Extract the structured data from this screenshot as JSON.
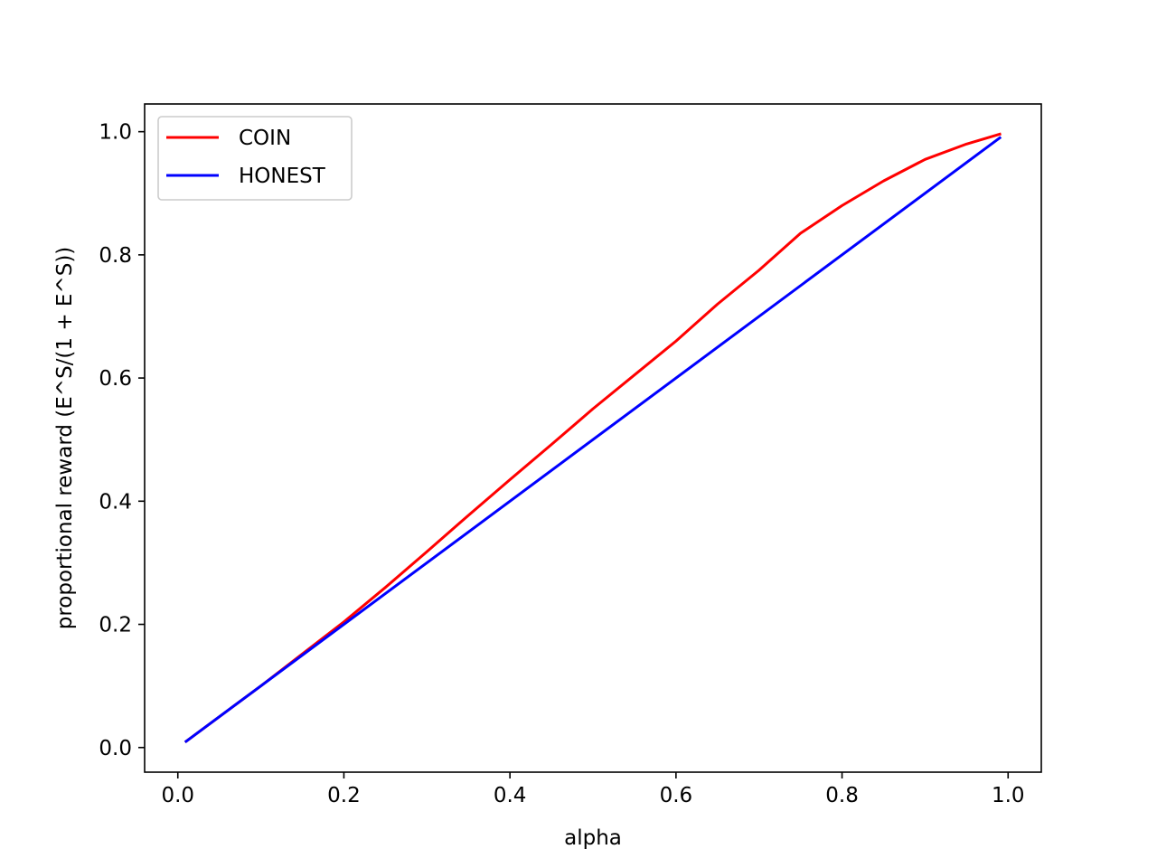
{
  "chart_data": {
    "type": "line",
    "title": "",
    "xlabel": "alpha",
    "ylabel": "proportional reward (E^S/(1 + E^S))",
    "xlim": [
      -0.04,
      1.04
    ],
    "ylim": [
      -0.04,
      1.045
    ],
    "xticks": [
      0.0,
      0.2,
      0.4,
      0.6,
      0.8,
      1.0
    ],
    "xtick_labels": [
      "0.0",
      "0.2",
      "0.4",
      "0.6",
      "0.8",
      "1.0"
    ],
    "yticks": [
      0.0,
      0.2,
      0.4,
      0.6,
      0.8,
      1.0
    ],
    "ytick_labels": [
      "0.0",
      "0.2",
      "0.4",
      "0.6",
      "0.8",
      "1.0"
    ],
    "grid": false,
    "legend_position": "upper-left",
    "series": [
      {
        "name": "COIN",
        "color": "#ff0000",
        "x": [
          0.01,
          0.05,
          0.1,
          0.15,
          0.2,
          0.25,
          0.3,
          0.35,
          0.4,
          0.45,
          0.5,
          0.55,
          0.6,
          0.65,
          0.7,
          0.75,
          0.8,
          0.85,
          0.9,
          0.95,
          0.99
        ],
        "y": [
          0.01,
          0.05,
          0.1,
          0.152,
          0.204,
          0.26,
          0.318,
          0.377,
          0.435,
          0.492,
          0.55,
          0.605,
          0.66,
          0.72,
          0.775,
          0.835,
          0.88,
          0.92,
          0.955,
          0.98,
          0.996
        ]
      },
      {
        "name": "HONEST",
        "color": "#0000ff",
        "x": [
          0.01,
          0.99
        ],
        "y": [
          0.01,
          0.99
        ]
      }
    ]
  }
}
